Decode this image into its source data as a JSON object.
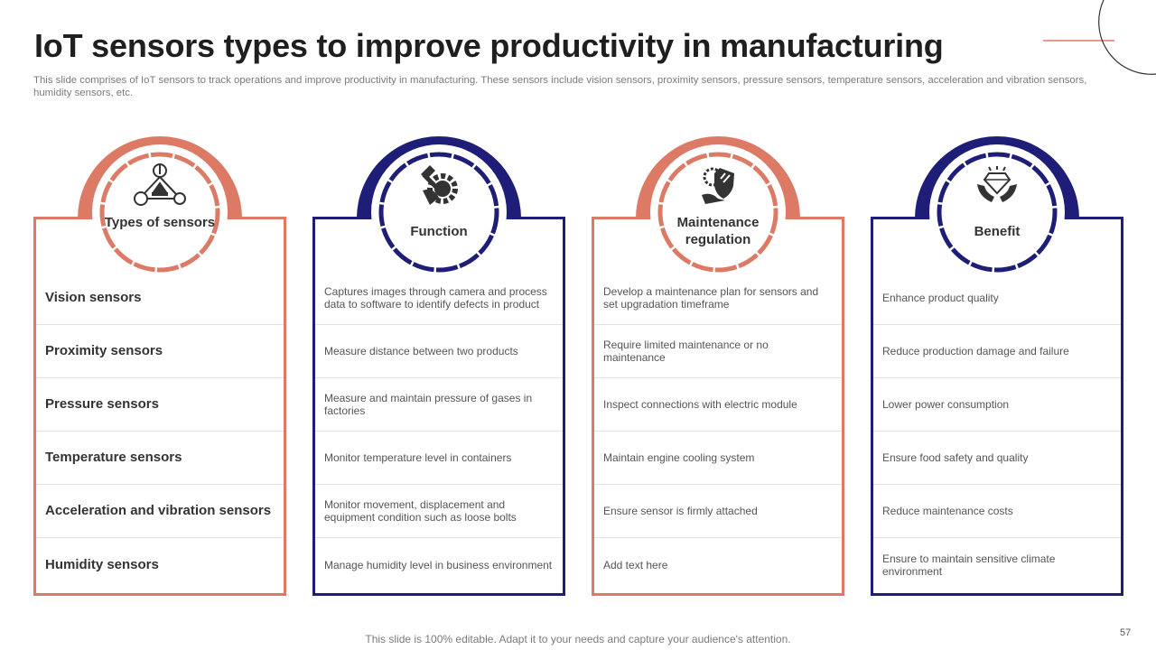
{
  "colors": {
    "salmon": "#dc7a66",
    "navy": "#1e1e78",
    "title": "#1f1f1f",
    "text": "#555555"
  },
  "page": {
    "title": "IoT sensors types to improve productivity in manufacturing",
    "subtitle": "This slide comprises of IoT sensors to track operations and improve productivity in manufacturing. These sensors include vision sensors, proximity sensors, pressure sensors, temperature sensors, acceleration and vibration sensors, humidity sensors, etc.",
    "footer": "This slide is 100% editable. Adapt it to your needs and capture your audience's attention.",
    "page_number": "57"
  },
  "columns": [
    {
      "header": "Types of sensors",
      "icon": "sensor-network-icon",
      "accent": "salmon",
      "rows": [
        "Vision sensors",
        "Proximity sensors",
        "Pressure sensors",
        "Temperature sensors",
        "Acceleration and vibration sensors",
        "Humidity sensors"
      ]
    },
    {
      "header": "Function",
      "icon": "gear-wrench-hand-icon",
      "accent": "navy",
      "rows": [
        "Captures images through camera and process data to software to identify defects in product",
        "Measure distance between two products",
        "Measure and maintain pressure of gases in factories",
        "Monitor temperature level in containers",
        "Monitor movement, displacement and equipment condition such as loose bolts",
        "Manage humidity level in business environment"
      ]
    },
    {
      "header": "Maintenance regulation",
      "icon": "shield-hand-icon",
      "accent": "salmon",
      "rows": [
        "Develop a maintenance plan for sensors and set upgradation timeframe",
        "Require limited maintenance or no maintenance",
        "Inspect connections with electric module",
        "Maintain engine cooling system",
        "Ensure sensor is firmly attached",
        "Add text here"
      ]
    },
    {
      "header": "Benefit",
      "icon": "diamond-hands-icon",
      "accent": "navy",
      "rows": [
        "Enhance product quality",
        "Reduce production damage and failure",
        "Lower power consumption",
        "Ensure food safety and quality",
        "Reduce maintenance costs",
        "Ensure to maintain sensitive climate environment"
      ]
    }
  ]
}
